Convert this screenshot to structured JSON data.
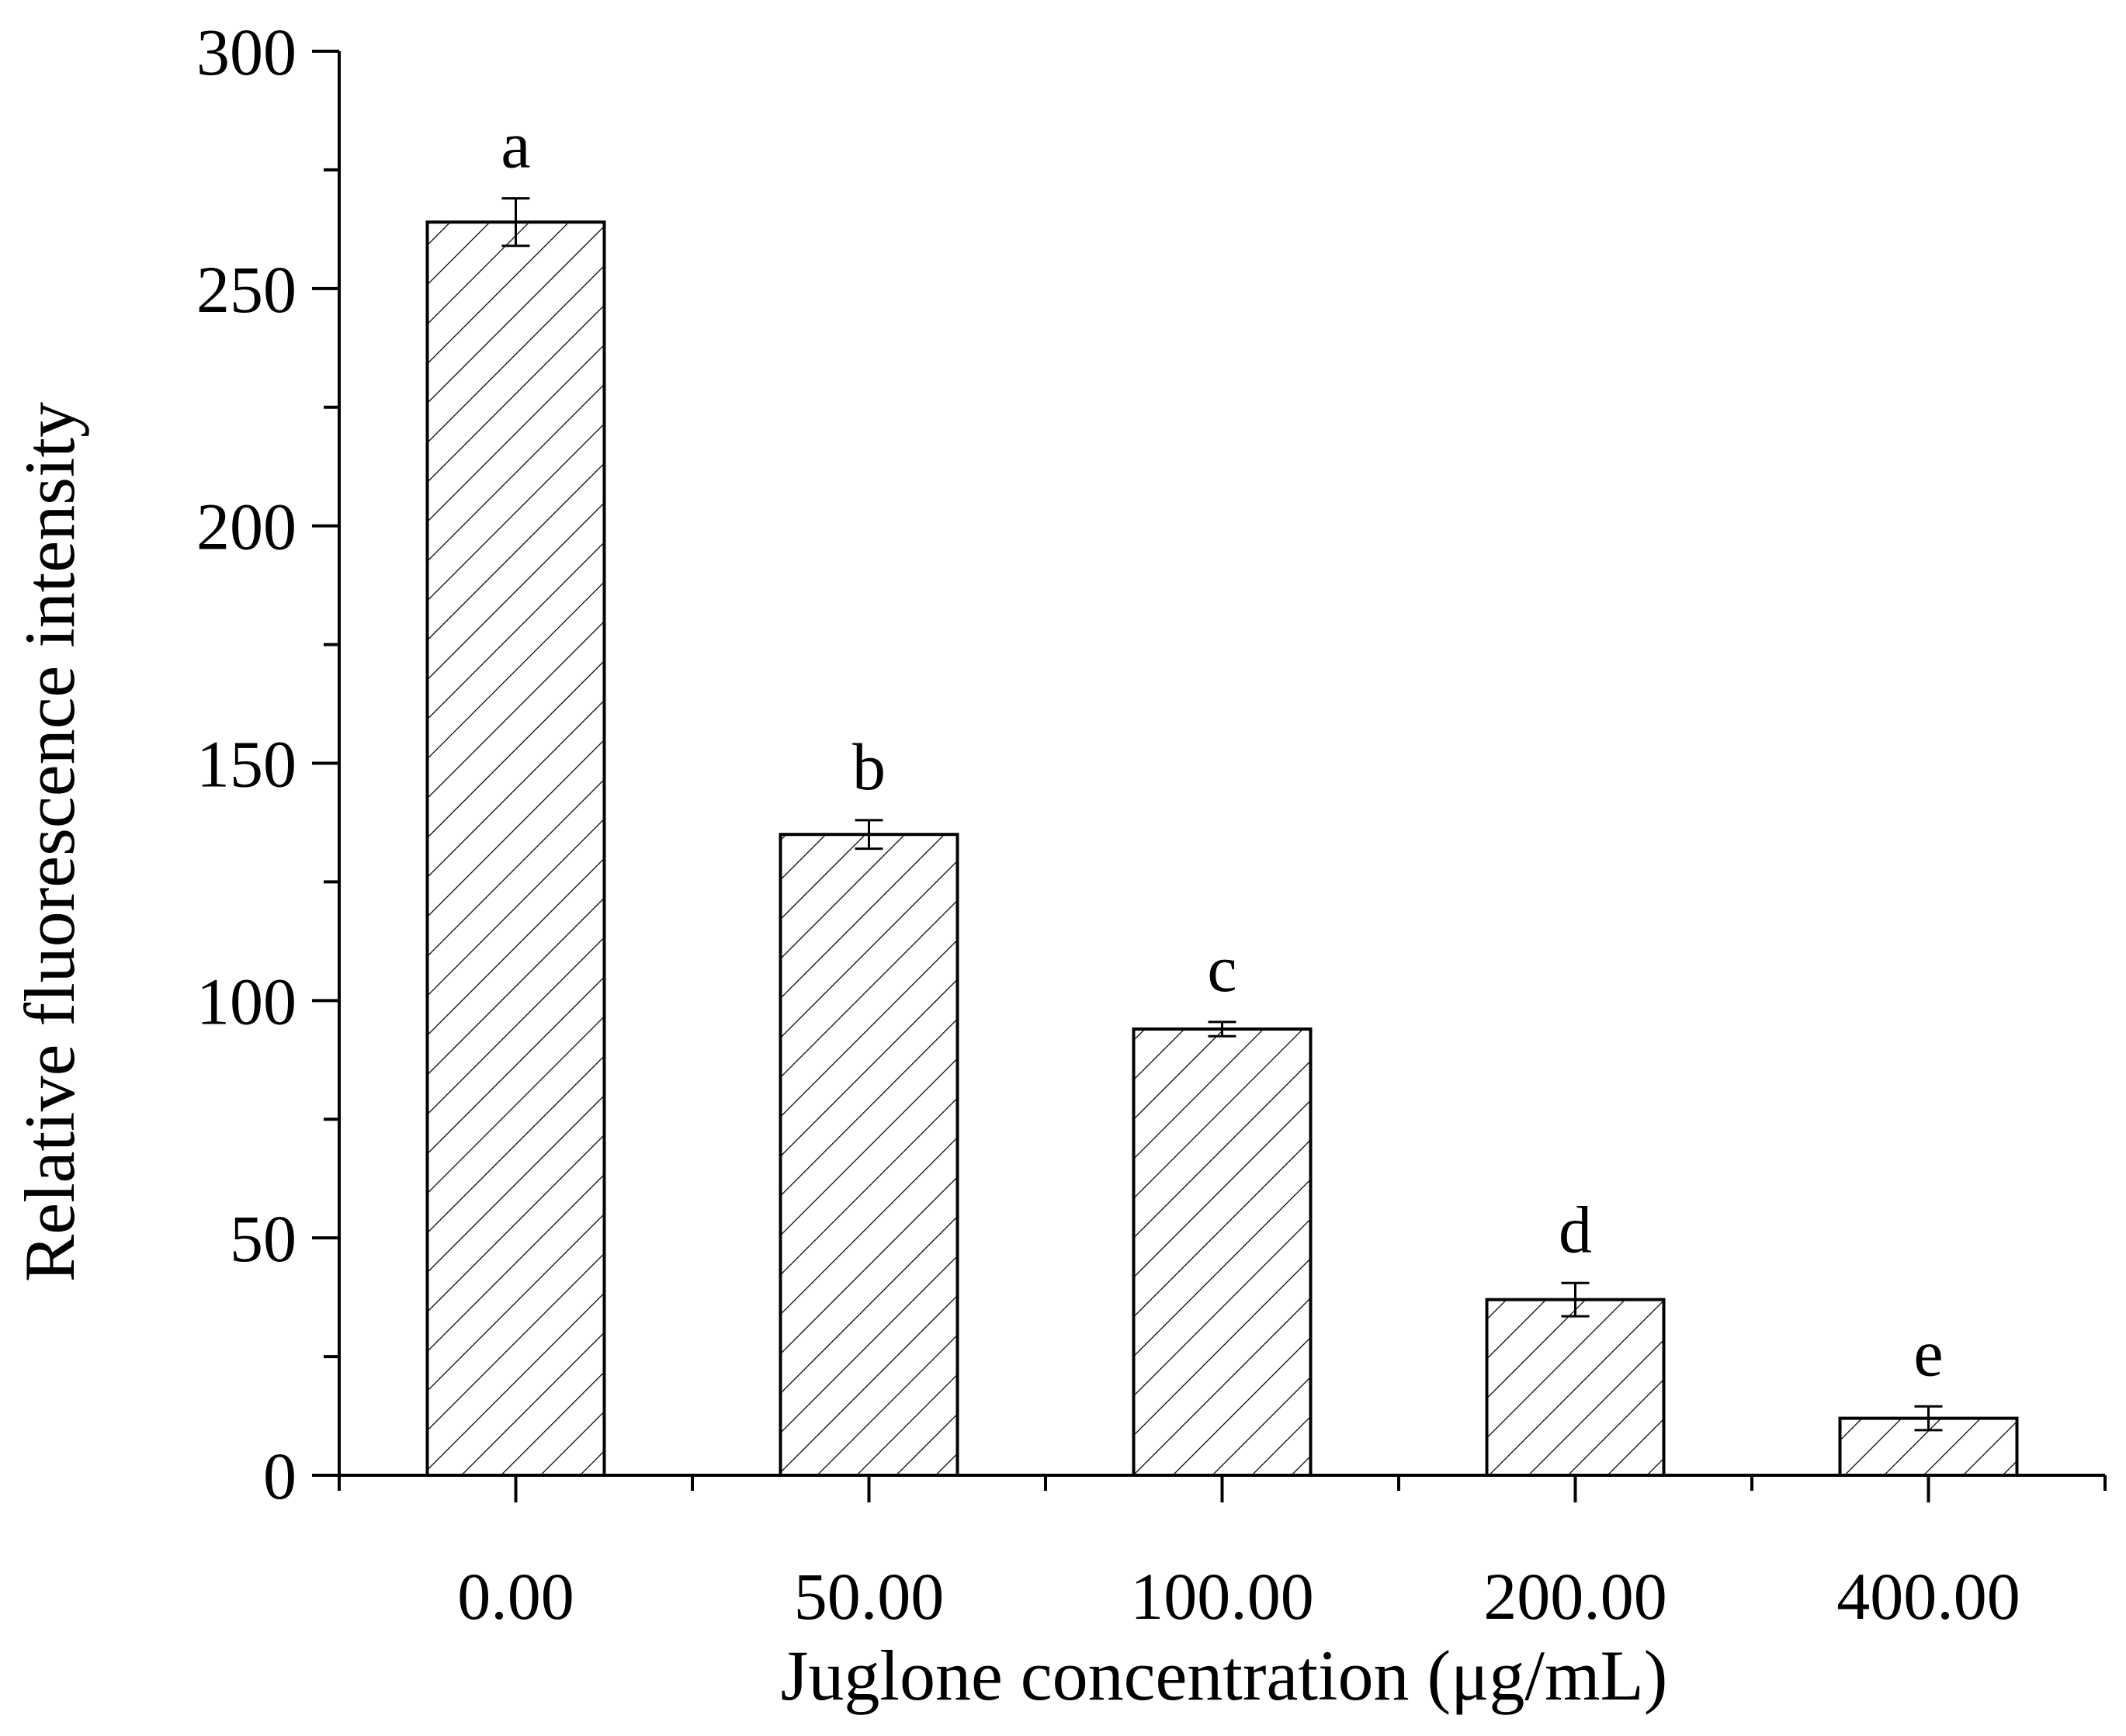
{
  "chart_data": {
    "type": "bar",
    "xlabel": "Juglone concentration (μg/mL)",
    "ylabel": "Relative fluorescence intensity",
    "categories": [
      "0.00",
      "50.00",
      "100.00",
      "200.00",
      "400.00"
    ],
    "values": [
      264,
      135,
      94,
      37,
      12
    ],
    "errors": [
      5,
      3,
      1.5,
      3.5,
      2.5
    ],
    "significance_letters": [
      "a",
      "b",
      "c",
      "d",
      "e"
    ],
    "ylim": [
      0,
      300
    ],
    "yticks": [
      "0",
      "50",
      "100",
      "150",
      "200",
      "250",
      "300"
    ],
    "grid": false,
    "legend": "none",
    "bar_pattern": "diagonal-hatch",
    "colors": {
      "bar_fill": "#ffffff",
      "hatch": "#000000",
      "stroke": "#000000"
    }
  }
}
